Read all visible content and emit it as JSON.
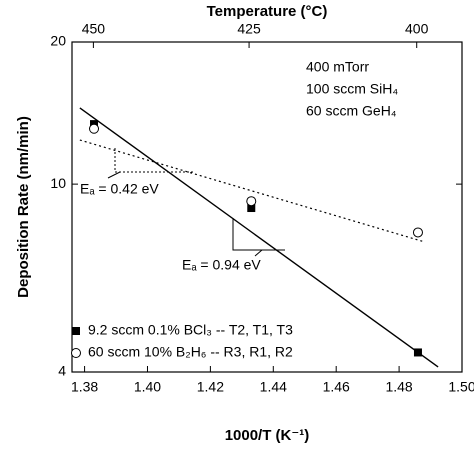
{
  "chart_data": {
    "type": "scatter",
    "title": "Temperature (°C)",
    "xlabel": "1000/T (K⁻¹)",
    "ylabel": "Deposition Rate (nm/min)",
    "xlim": [
      1.376,
      1.5
    ],
    "xticks": [
      1.38,
      {
        "value": 1.4,
        "label": "1.40"
      },
      1.42,
      1.44,
      1.46,
      1.48,
      {
        "value": 1.5,
        "label": "1.50"
      }
    ],
    "x2ticks": [
      {
        "value": 1.3828,
        "label": "450"
      },
      {
        "value": 1.4323,
        "label": "425"
      },
      {
        "value": 1.4856,
        "label": "400"
      }
    ],
    "ylim": [
      4,
      20
    ],
    "yticks": [
      4,
      10,
      20
    ],
    "log_y": true,
    "legend": "lower left",
    "series": [
      {
        "name": "9.2 sccm 0.1% BCl₃ -- T2, T1, T3",
        "marker": "square",
        "color": "#000000",
        "x": [
          1.383,
          1.433,
          1.486
        ],
        "values": [
          13.4,
          8.9,
          4.4
        ]
      },
      {
        "name": "60 sccm 10% B₂H₆ -- R3, R1, R2",
        "marker": "circle",
        "color": "#000000",
        "x": [
          1.383,
          1.433,
          1.486
        ],
        "values": [
          13.1,
          9.2,
          7.9
        ]
      }
    ],
    "fits": [
      {
        "style": "solid",
        "x": [
          1.3785,
          1.4924
        ],
        "values": [
          14.5,
          4.1
        ]
      },
      {
        "style": "dotted",
        "x": [
          1.3785,
          1.4879
        ],
        "values": [
          12.4,
          7.55
        ]
      }
    ],
    "conditions": [
      "400 mTorr",
      "100 sccm SiH₄",
      "60 sccm GeH₄"
    ],
    "annotations": [
      "Eₐ = 0.42 eV",
      "Eₐ = 0.94 eV"
    ]
  }
}
